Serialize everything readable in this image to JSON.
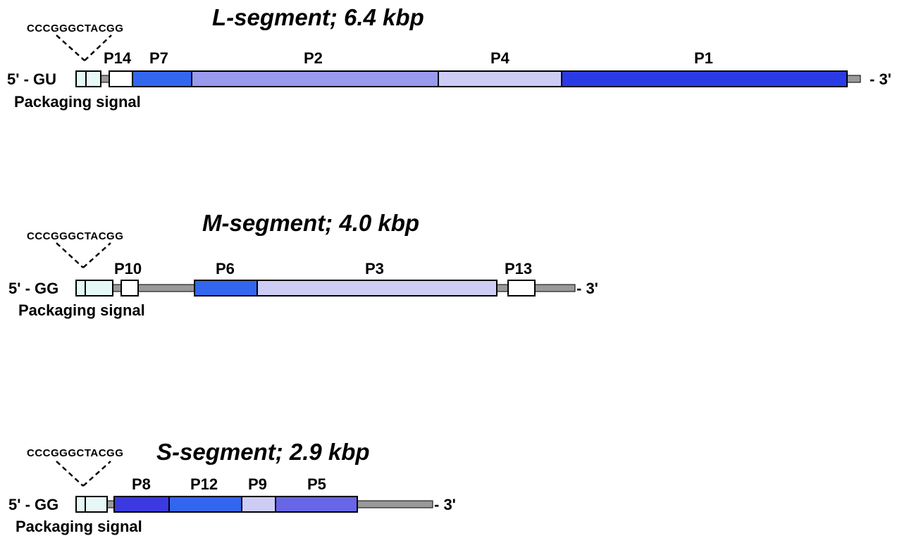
{
  "segments": [
    {
      "id": "L",
      "title": "L-segment; 6.4 kbp",
      "five_prime": "5' - GU",
      "three_prime": "- 3'",
      "sequence": "CCCGGGCTACGG",
      "packaging_label": "Packaging signal",
      "genes": [
        "P14",
        "P7",
        "P2",
        "P4",
        "P1"
      ]
    },
    {
      "id": "M",
      "title": "M-segment; 4.0 kbp",
      "five_prime": "5' - GG",
      "three_prime": "- 3'",
      "sequence": "CCCGGGCTACGG",
      "packaging_label": "Packaging signal",
      "genes": [
        "P10",
        "P6",
        "P3",
        "P13"
      ]
    },
    {
      "id": "S",
      "title": "S-segment; 2.9 kbp",
      "five_prime": "5' - GG",
      "three_prime": "- 3'",
      "sequence": "CCCGGGCTACGG",
      "packaging_label": "Packaging signal",
      "genes": [
        "P8",
        "P12",
        "P9",
        "P5"
      ]
    }
  ],
  "colors": {
    "backbone": "#999999",
    "packaging_box": "#e6f7f7",
    "white_gene": "#ffffff",
    "medium_blue": "#3366ee",
    "light_periwinkle": "#9999ee",
    "pale_lavender": "#ccccf5",
    "deep_blue": "#2a3be6",
    "royal_blue": "#3a3ae0",
    "slate_blue": "#6666e6"
  }
}
